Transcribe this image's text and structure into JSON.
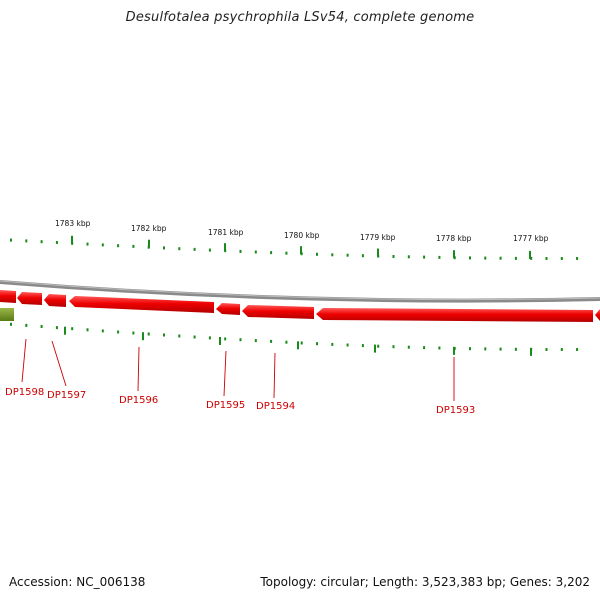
{
  "title": "Desulfotalea psychrophila LSv54, complete genome",
  "footer": {
    "accession": "Accession: NC_006138",
    "summary": "Topology: circular; Length: 3,523,383 bp; Genes: 3,202"
  },
  "colors": {
    "backbone": "#8a8a8a",
    "gene": "#ee0000",
    "gene_dark": "#b00000",
    "other_feature": "#6f8f1e",
    "tick": "#1a8a1a",
    "label": "#cc0000"
  },
  "scale_labels": [
    "1783 kbp",
    "1782 kbp",
    "1781 kbp",
    "1780 kbp",
    "1779 kbp",
    "1778 kbp",
    "1777 kbp"
  ],
  "genes": [
    "DP1598",
    "DP1597",
    "DP1596",
    "DP1595",
    "DP1594",
    "DP1593"
  ]
}
